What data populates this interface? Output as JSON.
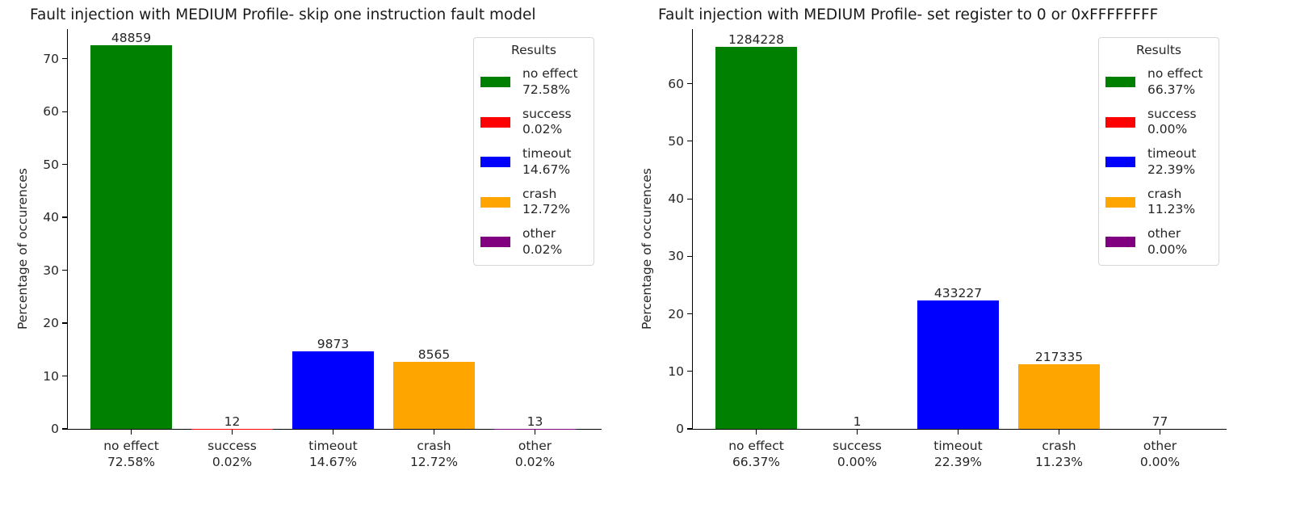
{
  "chart_data": [
    {
      "type": "bar",
      "title": "Fault injection with MEDIUM Profile- skip one instruction fault model",
      "xlabel": "",
      "ylabel": "Percentage of occurences",
      "ylim": [
        0,
        75.6
      ],
      "yticks": [
        "0",
        "10",
        "20",
        "30",
        "40",
        "50",
        "60",
        "70"
      ],
      "categories": [
        "no effect",
        "success",
        "timeout",
        "crash",
        "other"
      ],
      "category_percent_labels": [
        "72.58%",
        "0.02%",
        "14.67%",
        "12.72%",
        "0.02%"
      ],
      "values": [
        72.58,
        0.02,
        14.67,
        12.72,
        0.02
      ],
      "counts": [
        "48859",
        "12",
        "9873",
        "8565",
        "13"
      ],
      "colors": [
        "#008000",
        "#ff0000",
        "#0000ff",
        "#ffa500",
        "#800080"
      ],
      "legend": {
        "title": "Results",
        "position": "upper right",
        "entries": [
          {
            "name": "no effect",
            "pct": "72.58%",
            "color": "#008000"
          },
          {
            "name": "success",
            "pct": "0.02%",
            "color": "#ff0000"
          },
          {
            "name": "timeout",
            "pct": "14.67%",
            "color": "#0000ff"
          },
          {
            "name": "crash",
            "pct": "12.72%",
            "color": "#ffa500"
          },
          {
            "name": "other",
            "pct": "0.02%",
            "color": "#800080"
          }
        ]
      },
      "grid": false
    },
    {
      "type": "bar",
      "title": "Fault injection with MEDIUM Profile- set register to 0 or 0xFFFFFFFF",
      "xlabel": "",
      "ylabel": "Percentage of occurences",
      "ylim": [
        0,
        69.5
      ],
      "yticks": [
        "0",
        "10",
        "20",
        "30",
        "40",
        "50",
        "60"
      ],
      "categories": [
        "no effect",
        "success",
        "timeout",
        "crash",
        "other"
      ],
      "category_percent_labels": [
        "66.37%",
        "0.00%",
        "22.39%",
        "11.23%",
        "0.00%"
      ],
      "values": [
        66.37,
        0.0,
        22.39,
        11.23,
        0.0
      ],
      "counts": [
        "1284228",
        "1",
        "433227",
        "217335",
        "77"
      ],
      "colors": [
        "#008000",
        "#ff0000",
        "#0000ff",
        "#ffa500",
        "#800080"
      ],
      "legend": {
        "title": "Results",
        "position": "upper right",
        "entries": [
          {
            "name": "no effect",
            "pct": "66.37%",
            "color": "#008000"
          },
          {
            "name": "success",
            "pct": "0.00%",
            "color": "#ff0000"
          },
          {
            "name": "timeout",
            "pct": "22.39%",
            "color": "#0000ff"
          },
          {
            "name": "crash",
            "pct": "11.23%",
            "color": "#ffa500"
          },
          {
            "name": "other",
            "pct": "0.00%",
            "color": "#800080"
          }
        ]
      },
      "grid": false
    }
  ]
}
